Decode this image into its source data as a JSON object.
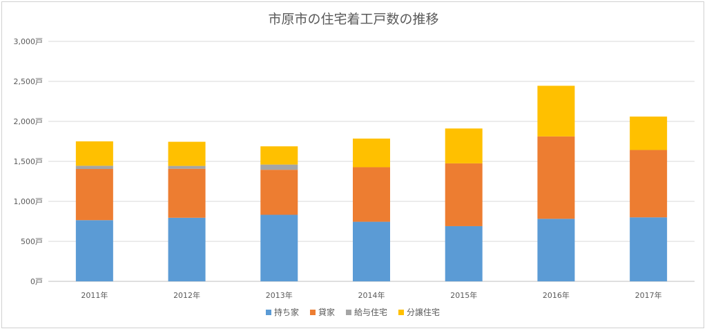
{
  "chart_data": {
    "type": "bar",
    "stacked": true,
    "title": "市原市の住宅着工戸数の推移",
    "categories": [
      "2011年",
      "2012年",
      "2013年",
      "2014年",
      "2015年",
      "2016年",
      "2017年"
    ],
    "series": [
      {
        "name": "持ち家",
        "color": "#5b9bd5",
        "values": [
          765,
          795,
          832,
          745,
          690,
          782,
          800
        ]
      },
      {
        "name": "貸家",
        "color": "#ed7d31",
        "values": [
          640,
          613,
          563,
          682,
          785,
          1030,
          842
        ]
      },
      {
        "name": "給与住宅",
        "color": "#a5a5a5",
        "values": [
          40,
          35,
          65,
          0,
          0,
          0,
          0
        ]
      },
      {
        "name": "分譲住宅",
        "color": "#ffc000",
        "values": [
          305,
          302,
          228,
          358,
          436,
          633,
          418
        ]
      }
    ],
    "ylim": [
      0,
      3000
    ],
    "yticks": [
      "0戸",
      "500戸",
      "1,000戸",
      "1,500戸",
      "2,000戸",
      "2,500戸",
      "3,000戸"
    ],
    "ytick_values": [
      0,
      500,
      1000,
      1500,
      2000,
      2500,
      3000
    ],
    "grid": true,
    "legend_position": "bottom"
  }
}
